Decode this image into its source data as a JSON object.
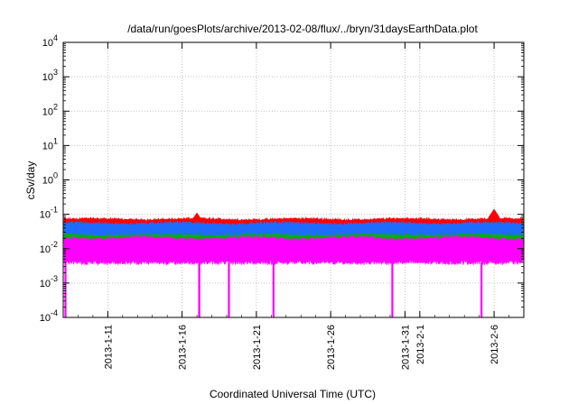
{
  "chart_data": {
    "type": "area",
    "title": "/data/run/goesPlots/archive/2013-02-08/flux/../bryn/31daysEarthData.plot",
    "xlabel": "Coordinated Universal Time (UTC)",
    "ylabel": "cSv/day",
    "y_scale": "log",
    "ylim": [
      0.0001,
      10000
    ],
    "xlim": [
      "2013-01-08",
      "2013-02-08"
    ],
    "grid": true,
    "x_ticks": [
      "2013-1-11",
      "2013-1-16",
      "2013-1-21",
      "2013-1-26",
      "2013-1-31",
      "2013-2-1",
      "2013-2-6"
    ],
    "x_tick_dates": [
      "2013-01-11",
      "2013-01-16",
      "2013-01-21",
      "2013-01-26",
      "2013-01-31",
      "2013-02-01",
      "2013-02-06"
    ],
    "y_ticks": [
      {
        "value": 0.0001,
        "base": "10",
        "exp": "-4"
      },
      {
        "value": 0.001,
        "base": "10",
        "exp": "-3"
      },
      {
        "value": 0.01,
        "base": "10",
        "exp": "-2"
      },
      {
        "value": 0.1,
        "base": "10",
        "exp": "-1"
      },
      {
        "value": 1,
        "base": "10",
        "exp": "0"
      },
      {
        "value": 10,
        "base": "10",
        "exp": "1"
      },
      {
        "value": 100,
        "base": "10",
        "exp": "2"
      },
      {
        "value": 1000,
        "base": "10",
        "exp": "3"
      },
      {
        "value": 10000,
        "base": "10",
        "exp": "4"
      }
    ],
    "series": [
      {
        "color": "#ff0000",
        "typical_range": [
          0.03,
          0.09
        ],
        "peaks": [
          {
            "x": "2013-01-17",
            "y": 0.11
          },
          {
            "x": "2013-02-06",
            "y": 0.14
          }
        ]
      },
      {
        "color": "#1e6cff",
        "typical_range": [
          0.02,
          0.07
        ]
      },
      {
        "color": "#00b000",
        "typical_range": [
          0.012,
          0.03
        ]
      },
      {
        "color": "#ff00ff",
        "typical_range": [
          0.004,
          0.03
        ],
        "dropouts": [
          "2013-01-08",
          "2013-01-17",
          "2013-01-17",
          "2013-01-19",
          "2013-01-22",
          "2013-01-30",
          "2013-02-05"
        ]
      }
    ]
  }
}
